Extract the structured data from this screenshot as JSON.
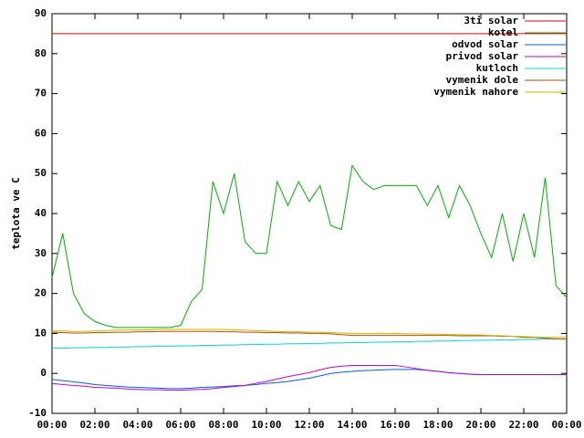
{
  "chart_data": {
    "type": "line",
    "y_label": "teplota ve C",
    "xlim": [
      0,
      24
    ],
    "ylim": [
      -10,
      90
    ],
    "xticks": [
      {
        "value": 0,
        "label": "00:00"
      },
      {
        "value": 2,
        "label": "02:00"
      },
      {
        "value": 4,
        "label": "04:00"
      },
      {
        "value": 6,
        "label": "06:00"
      },
      {
        "value": 8,
        "label": "08:00"
      },
      {
        "value": 10,
        "label": "10:00"
      },
      {
        "value": 12,
        "label": "12:00"
      },
      {
        "value": 14,
        "label": "14:00"
      },
      {
        "value": 16,
        "label": "16:00"
      },
      {
        "value": 18,
        "label": "18:00"
      },
      {
        "value": 20,
        "label": "20:00"
      },
      {
        "value": 22,
        "label": "22:00"
      },
      {
        "value": 24,
        "label": "00:00"
      }
    ],
    "yticks": [
      -10,
      0,
      10,
      20,
      30,
      40,
      50,
      60,
      70,
      80,
      90
    ],
    "grid": false,
    "legend": "top-right",
    "x": [
      0,
      0.5,
      1,
      1.5,
      2,
      2.5,
      3,
      3.5,
      4,
      4.5,
      5,
      5.5,
      6,
      6.5,
      7,
      7.5,
      8,
      8.5,
      9,
      9.5,
      10,
      10.5,
      11,
      11.5,
      12,
      12.5,
      13,
      13.5,
      14,
      14.5,
      15,
      15.5,
      16,
      16.5,
      17,
      17.5,
      18,
      18.5,
      19,
      19.5,
      20,
      20.5,
      21,
      21.5,
      22,
      22.5,
      23,
      23.5,
      24
    ],
    "series": [
      {
        "name": "3ti solar",
        "color": "#e00000",
        "values": [
          85,
          85,
          85,
          85,
          85,
          85,
          85,
          85,
          85,
          85,
          85,
          85,
          85,
          85,
          85,
          85,
          85,
          85,
          85,
          85,
          85,
          85,
          85,
          85,
          85,
          85,
          85,
          85,
          85,
          85,
          85,
          85,
          85,
          85,
          85,
          85,
          85,
          85,
          85,
          85,
          85,
          85,
          85,
          85,
          85,
          85,
          85,
          85,
          85
        ]
      },
      {
        "name": "kotel",
        "color": "#00b000",
        "values": [
          24,
          35,
          20,
          15,
          13,
          12,
          11.5,
          11.5,
          11.5,
          11.5,
          11.5,
          11.5,
          12,
          18,
          21,
          48,
          40,
          50,
          33,
          30,
          30,
          48,
          42,
          48,
          43,
          47,
          37,
          36,
          52,
          48,
          46,
          47,
          47,
          47,
          47,
          42,
          47,
          39,
          47,
          42,
          35,
          29,
          40,
          28,
          40,
          29,
          49,
          22,
          19
        ]
      },
      {
        "name": "odvod solar",
        "color": "#0060e0",
        "values": [
          -1.5,
          -1.8,
          -2.1,
          -2.4,
          -2.8,
          -3,
          -3.2,
          -3.4,
          -3.5,
          -3.6,
          -3.7,
          -3.8,
          -3.8,
          -3.7,
          -3.5,
          -3.4,
          -3.3,
          -3.1,
          -3,
          -2.8,
          -2.5,
          -2.3,
          -2,
          -1.6,
          -1.2,
          -0.6,
          0,
          0.3,
          0.5,
          0.7,
          0.8,
          0.9,
          1,
          1,
          1,
          0.8,
          0.5,
          0.2,
          0,
          -0.2,
          -0.3,
          -0.3,
          -0.3,
          -0.3,
          -0.3,
          -0.3,
          -0.3,
          -0.3,
          -0.3
        ]
      },
      {
        "name": "privod solar",
        "color": "#c000e0",
        "values": [
          -2.5,
          -2.8,
          -3,
          -3.2,
          -3.5,
          -3.6,
          -3.7,
          -3.9,
          -4,
          -4.1,
          -4.1,
          -4.2,
          -4.2,
          -4.1,
          -4,
          -3.8,
          -3.5,
          -3.3,
          -3,
          -2.5,
          -2,
          -1.4,
          -0.8,
          -0.3,
          0.2,
          0.9,
          1.5,
          1.8,
          2,
          2,
          2,
          2,
          2,
          1.6,
          1.2,
          0.8,
          0.5,
          0.2,
          0,
          -0.2,
          -0.3,
          -0.3,
          -0.3,
          -0.3,
          -0.3,
          -0.3,
          -0.3,
          -0.3,
          -0.3
        ]
      },
      {
        "name": "kutloch",
        "color": "#00d8d8",
        "values": [
          6.3,
          6.3,
          6.4,
          6.4,
          6.5,
          6.5,
          6.6,
          6.6,
          6.7,
          6.7,
          6.8,
          6.8,
          6.9,
          6.9,
          7.0,
          7.0,
          7.1,
          7.1,
          7.2,
          7.2,
          7.3,
          7.3,
          7.4,
          7.4,
          7.5,
          7.5,
          7.6,
          7.6,
          7.7,
          7.7,
          7.8,
          7.8,
          7.9,
          7.9,
          8.0,
          8.0,
          8.1,
          8.1,
          8.2,
          8.2,
          8.3,
          8.3,
          8.4,
          8.4,
          8.5,
          8.5,
          8.6,
          8.6,
          8.6
        ]
      },
      {
        "name": "vymenik dole",
        "color": "#b85000",
        "values": [
          10.3,
          10.2,
          10.1,
          10.1,
          10.2,
          10.2,
          10.3,
          10.3,
          10.4,
          10.4,
          10.5,
          10.5,
          10.5,
          10.5,
          10.5,
          10.5,
          10.4,
          10.4,
          10.3,
          10.3,
          10.2,
          10.2,
          10.1,
          10.1,
          10.0,
          10.0,
          9.9,
          9.7,
          9.5,
          9.5,
          9.5,
          9.5,
          9.5,
          9.5,
          9.5,
          9.5,
          9.5,
          9.5,
          9.4,
          9.4,
          9.4,
          9.4,
          9.3,
          9.3,
          9.0,
          9.0,
          8.8,
          8.6,
          8.6
        ]
      },
      {
        "name": "vymenik nahore",
        "color": "#c8b400",
        "values": [
          10.6,
          10.6,
          10.5,
          10.5,
          10.6,
          10.7,
          10.8,
          10.8,
          10.9,
          10.9,
          11.0,
          11.0,
          11.0,
          11.0,
          11.0,
          11.0,
          11.0,
          10.9,
          10.8,
          10.7,
          10.6,
          10.5,
          10.4,
          10.4,
          10.3,
          10.3,
          10.2,
          10.1,
          10.0,
          10.0,
          10.0,
          10.0,
          10.0,
          9.9,
          9.9,
          9.8,
          9.8,
          9.7,
          9.7,
          9.6,
          9.6,
          9.5,
          9.4,
          9.3,
          9.2,
          9.1,
          9.0,
          9.0,
          9.0
        ]
      }
    ]
  }
}
